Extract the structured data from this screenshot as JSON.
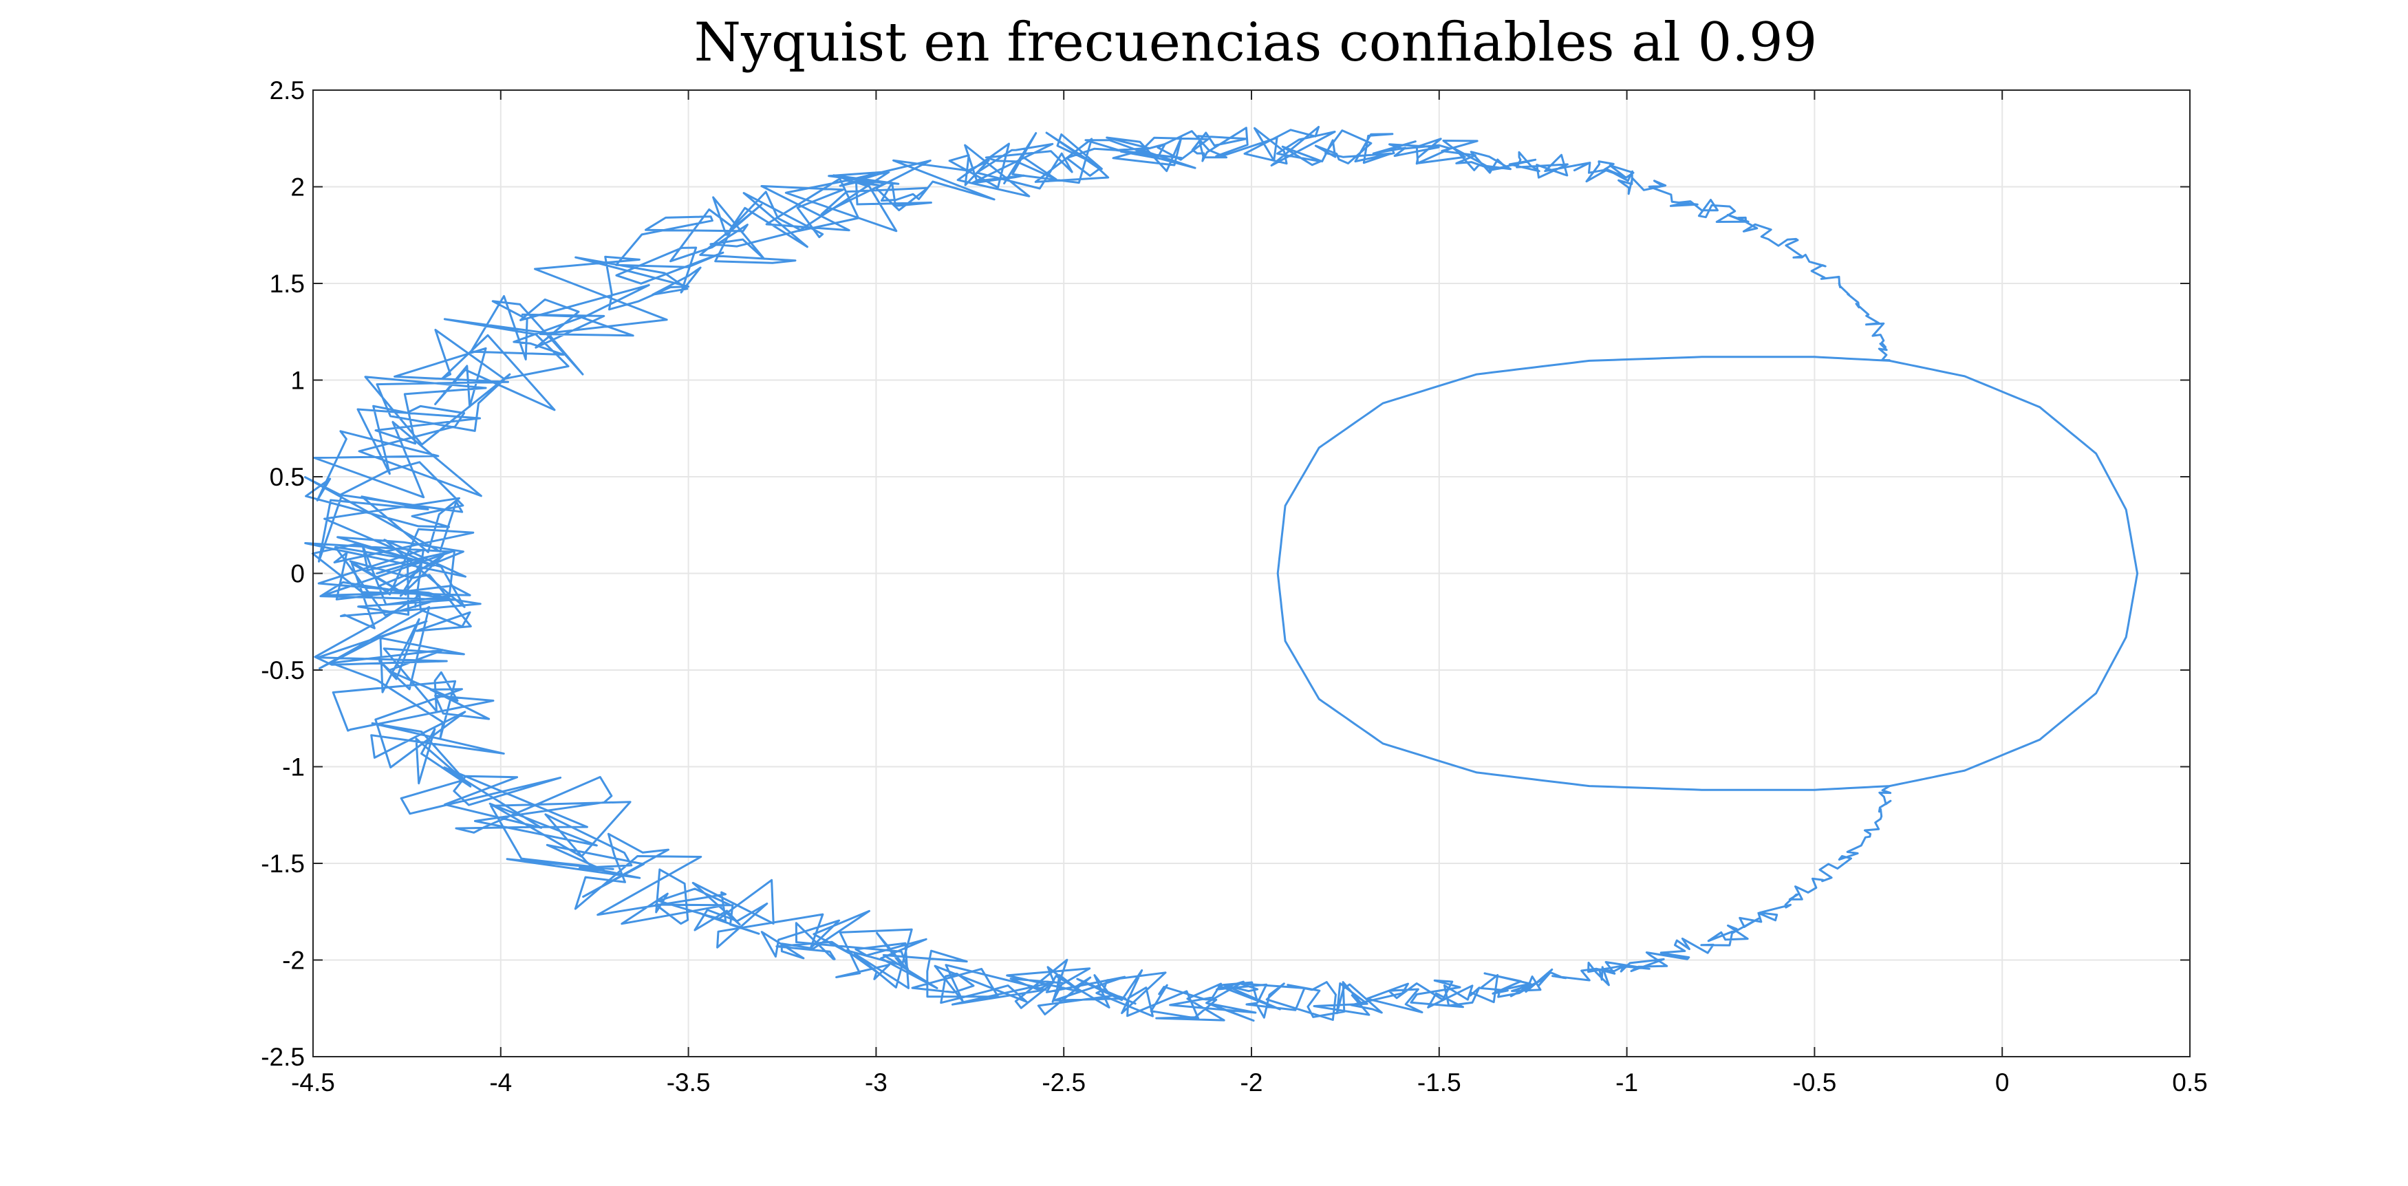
{
  "chart_data": {
    "type": "line",
    "title": "Nyquist en frecuencias confiables al 0.99",
    "xlabel": "",
    "ylabel": "",
    "xlim": [
      -4.5,
      0.5
    ],
    "ylim": [
      -2.5,
      2.5
    ],
    "x_ticks": [
      -4.5,
      -4,
      -3.5,
      -3,
      -2.5,
      -2,
      -1.5,
      -1,
      -0.5,
      0,
      0.5
    ],
    "y_ticks": [
      -2.5,
      -2,
      -1.5,
      -1,
      -0.5,
      0,
      0.5,
      1,
      1.5,
      2,
      2.5
    ],
    "x_tick_labels": [
      "-4.5",
      "-4",
      "-3.5",
      "-3",
      "-2.5",
      "-2",
      "-1.5",
      "-1",
      "-0.5",
      "0",
      "0.5"
    ],
    "y_tick_labels": [
      "-2.5",
      "-2",
      "-1.5",
      "-1",
      "-0.5",
      "0",
      "0.5",
      "1",
      "1.5",
      "2",
      "2.5"
    ],
    "grid": true,
    "color": "#4393e4",
    "series": [
      {
        "description_points": "outer noisy large loop, upper half (x, y)",
        "x": [
          -0.3,
          -0.33,
          -0.4,
          -0.5,
          -0.6,
          -0.7,
          -0.8,
          -0.9,
          -1.0,
          -1.1,
          -1.2,
          -1.3,
          -1.4,
          -1.5,
          -1.6,
          -1.7,
          -1.8,
          -1.9,
          -2.0,
          -2.1,
          -2.2,
          -2.3,
          -2.4,
          -2.5,
          -2.6,
          -2.7,
          -2.8,
          -2.9,
          -3.0,
          -3.1,
          -3.2,
          -3.3,
          -3.4,
          -3.5,
          -3.6,
          -3.7,
          -3.8,
          -3.9,
          -4.0,
          -4.1,
          -4.2,
          -4.25,
          -4.3,
          -4.32,
          -4.3,
          -4.25,
          -4.3,
          -4.33
        ],
        "y": [
          1.1,
          1.25,
          1.45,
          1.6,
          1.73,
          1.83,
          1.92,
          1.98,
          2.04,
          2.08,
          2.11,
          2.13,
          2.16,
          2.17,
          2.19,
          2.2,
          2.21,
          2.21,
          2.21,
          2.21,
          2.2,
          2.18,
          2.16,
          2.15,
          2.13,
          2.1,
          2.06,
          2.02,
          1.98,
          1.93,
          1.88,
          1.82,
          1.75,
          1.67,
          1.58,
          1.48,
          1.37,
          1.25,
          1.12,
          0.98,
          0.82,
          0.66,
          0.5,
          0.35,
          0.2,
          0.08,
          0.0,
          0.0
        ]
      },
      {
        "description_points": "outer noisy large loop, lower half (x, y) — mirror of upper half",
        "x": [
          -4.33,
          -4.3,
          -4.25,
          -4.3,
          -4.32,
          -4.3,
          -4.25,
          -4.2,
          -4.1,
          -4.0,
          -3.9,
          -3.8,
          -3.7,
          -3.6,
          -3.5,
          -3.4,
          -3.3,
          -3.2,
          -3.1,
          -3.0,
          -2.9,
          -2.8,
          -2.7,
          -2.6,
          -2.5,
          -2.4,
          -2.3,
          -2.2,
          -2.1,
          -2.0,
          -1.9,
          -1.8,
          -1.7,
          -1.6,
          -1.5,
          -1.4,
          -1.3,
          -1.2,
          -1.1,
          -1.0,
          -0.9,
          -0.8,
          -0.7,
          -0.6,
          -0.5,
          -0.4,
          -0.33,
          -0.3
        ],
        "y": [
          0.0,
          0.0,
          -0.08,
          -0.2,
          -0.35,
          -0.5,
          -0.66,
          -0.82,
          -0.98,
          -1.12,
          -1.25,
          -1.37,
          -1.48,
          -1.58,
          -1.67,
          -1.75,
          -1.82,
          -1.88,
          -1.93,
          -1.98,
          -2.02,
          -2.06,
          -2.1,
          -2.13,
          -2.15,
          -2.16,
          -2.18,
          -2.2,
          -2.21,
          -2.21,
          -2.21,
          -2.21,
          -2.2,
          -2.19,
          -2.17,
          -2.16,
          -2.13,
          -2.11,
          -2.08,
          -2.04,
          -1.98,
          -1.92,
          -1.83,
          -1.73,
          -1.6,
          -1.45,
          -1.25,
          -1.1
        ]
      },
      {
        "description_points": "inner ellipse loop (x, y)",
        "x": [
          -0.3,
          -0.5,
          -0.8,
          -1.1,
          -1.4,
          -1.65,
          -1.82,
          -1.91,
          -1.93,
          -1.91,
          -1.82,
          -1.65,
          -1.4,
          -1.1,
          -0.8,
          -0.5,
          -0.3,
          -0.1,
          0.1,
          0.25,
          0.33,
          0.36,
          0.33,
          0.25,
          0.1,
          -0.1,
          -0.3
        ],
        "y": [
          1.1,
          1.12,
          1.12,
          1.1,
          1.03,
          0.88,
          0.65,
          0.35,
          0.0,
          -0.35,
          -0.65,
          -0.88,
          -1.03,
          -1.1,
          -1.12,
          -1.12,
          -1.1,
          -1.02,
          -0.86,
          -0.62,
          -0.33,
          0.0,
          0.33,
          0.62,
          0.86,
          1.02,
          1.1
        ]
      }
    ]
  }
}
